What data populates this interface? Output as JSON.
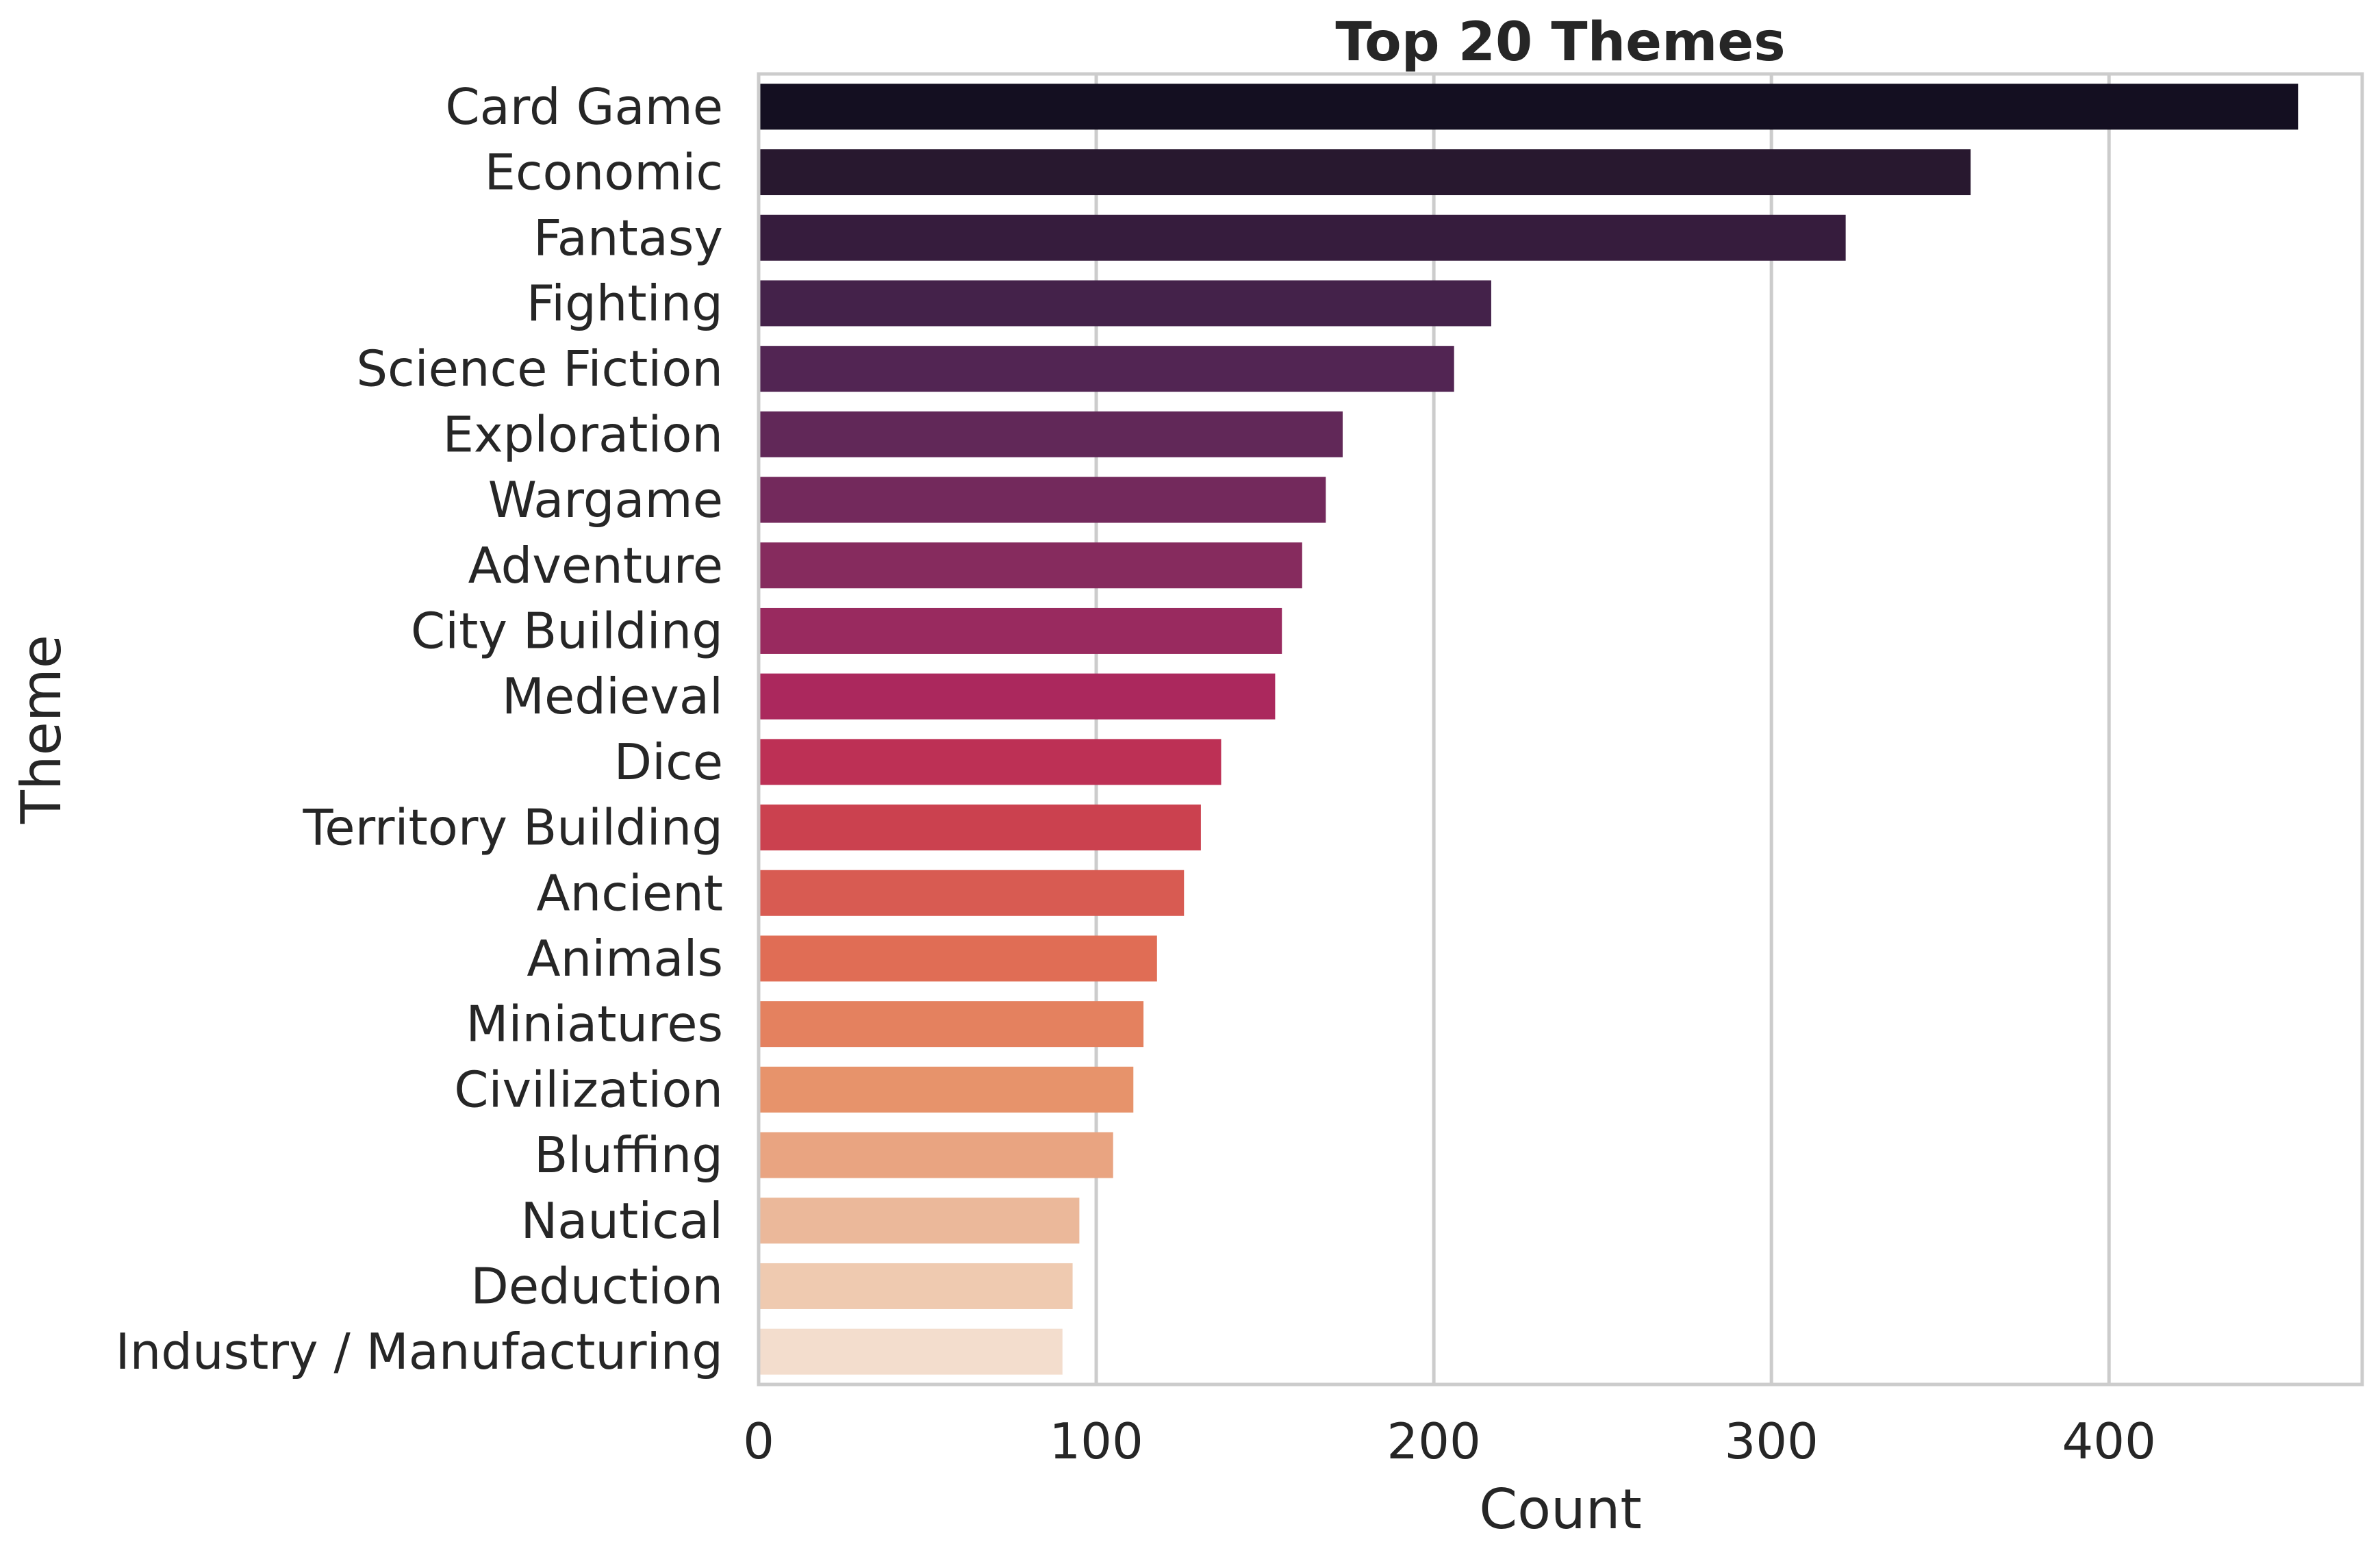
{
  "chart_data": {
    "type": "bar",
    "orientation": "horizontal",
    "title": "Top 20 Themes",
    "xlabel": "Count",
    "ylabel": "Theme",
    "xlim": [
      0,
      475
    ],
    "xticks": [
      0,
      100,
      200,
      300,
      400
    ],
    "xtick_labels": [
      "0",
      "100",
      "200",
      "300",
      "400"
    ],
    "grid": "vertical",
    "legend": "none",
    "palette": "rocket",
    "categories": [
      "Card Game",
      "Economic",
      "Fantasy",
      "Fighting",
      "Science Fiction",
      "Exploration",
      "Wargame",
      "Adventure",
      "City Building",
      "Medieval",
      "Dice",
      "Territory Building",
      "Ancient",
      "Animals",
      "Miniatures",
      "Civilization",
      "Bluffing",
      "Nautical",
      "Deduction",
      "Industry / Manufacturing"
    ],
    "values": [
      456,
      359,
      322,
      217,
      206,
      173,
      168,
      161,
      155,
      153,
      137,
      131,
      126,
      118,
      114,
      111,
      105,
      95,
      93,
      90
    ],
    "colors": [
      "#140f21",
      "#28182f",
      "#361c3d",
      "#44224a",
      "#522553",
      "#612858",
      "#73295c",
      "#862b5e",
      "#992a5f",
      "#ab285d",
      "#bd3055",
      "#cb414f",
      "#d85b52",
      "#e06d55",
      "#e4815f",
      "#e7936b",
      "#e9a481",
      "#ebb89a",
      "#efcab0",
      "#f3ddcd"
    ]
  }
}
